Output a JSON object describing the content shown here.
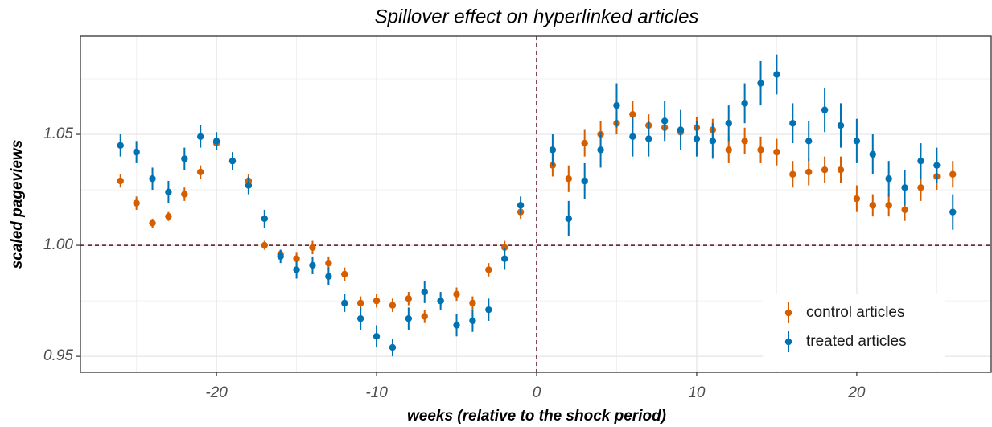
{
  "chart_data": {
    "type": "errorbar-scatter",
    "title": "Spillover effect on hyperlinked articles",
    "x_label": "weeks (relative to the shock period)",
    "y_label": "scaled pageviews",
    "xlim": [
      -28.5,
      28.4
    ],
    "ylim": [
      0.9428,
      1.0942
    ],
    "xticks": [
      -20,
      -10,
      0,
      10,
      20
    ],
    "yticks": [
      0.95,
      {
        "value": 1,
        "label": "1.00"
      },
      1.05
    ],
    "x_minor_grid": [
      -25,
      -15,
      -5,
      5,
      15,
      25
    ],
    "y_minor_grid": [
      0.975,
      1.025,
      1.075
    ],
    "grid": true,
    "vline": 0,
    "hline": 1,
    "reference_color": "#5a1020",
    "legend_position": "bottom-right",
    "x": [
      -26,
      -25,
      -24,
      -23,
      -22,
      -21,
      -20,
      -19,
      -18,
      -17,
      -16,
      -15,
      -14,
      -13,
      -12,
      -11,
      -10,
      -9,
      -8,
      -7,
      -6,
      -5,
      -4,
      -3,
      -2,
      -1,
      1,
      2,
      3,
      4,
      5,
      6,
      7,
      8,
      9,
      10,
      11,
      12,
      13,
      14,
      15,
      16,
      17,
      18,
      19,
      20,
      21,
      22,
      23,
      24,
      25,
      26
    ],
    "series": [
      {
        "name": "control articles",
        "color": "#d55e00",
        "values": [
          1.029,
          1.019,
          1.01,
          1.013,
          1.023,
          1.033,
          1.046,
          1.038,
          1.029,
          1.0,
          0.996,
          0.994,
          0.999,
          0.992,
          0.987,
          0.974,
          0.975,
          0.973,
          0.976,
          0.968,
          0.975,
          0.978,
          0.974,
          0.989,
          0.999,
          1.015,
          1.036,
          1.03,
          1.046,
          1.05,
          1.055,
          1.059,
          1.054,
          1.053,
          1.051,
          1.053,
          1.052,
          1.043,
          1.047,
          1.043,
          1.042,
          1.032,
          1.033,
          1.034,
          1.034,
          1.021,
          1.018,
          1.018,
          1.016,
          1.026,
          1.031,
          1.032
        ],
        "errors": [
          0.003,
          0.003,
          0.002,
          0.002,
          0.003,
          0.003,
          0.003,
          0.003,
          0.003,
          0.002,
          0.002,
          0.003,
          0.003,
          0.003,
          0.003,
          0.003,
          0.003,
          0.003,
          0.003,
          0.003,
          0.003,
          0.003,
          0.003,
          0.003,
          0.003,
          0.003,
          0.005,
          0.006,
          0.006,
          0.006,
          0.005,
          0.006,
          0.005,
          0.005,
          0.005,
          0.005,
          0.005,
          0.006,
          0.006,
          0.006,
          0.006,
          0.006,
          0.006,
          0.006,
          0.006,
          0.006,
          0.005,
          0.005,
          0.005,
          0.006,
          0.006,
          0.006
        ]
      },
      {
        "name": "treated articles",
        "color": "#0072b2",
        "values": [
          1.045,
          1.042,
          1.03,
          1.024,
          1.039,
          1.049,
          1.047,
          1.038,
          1.027,
          1.012,
          0.995,
          0.989,
          0.991,
          0.986,
          0.974,
          0.967,
          0.959,
          0.954,
          0.967,
          0.979,
          0.975,
          0.964,
          0.966,
          0.971,
          0.994,
          1.018,
          1.043,
          1.012,
          1.029,
          1.043,
          1.063,
          1.049,
          1.048,
          1.056,
          1.052,
          1.048,
          1.047,
          1.055,
          1.064,
          1.073,
          1.077,
          1.055,
          1.047,
          1.061,
          1.054,
          1.047,
          1.041,
          1.03,
          1.026,
          1.038,
          1.036,
          1.015
        ],
        "errors": [
          0.005,
          0.005,
          0.005,
          0.005,
          0.005,
          0.005,
          0.004,
          0.004,
          0.004,
          0.004,
          0.003,
          0.004,
          0.004,
          0.004,
          0.004,
          0.005,
          0.005,
          0.004,
          0.005,
          0.005,
          0.004,
          0.005,
          0.005,
          0.005,
          0.005,
          0.004,
          0.007,
          0.008,
          0.008,
          0.008,
          0.01,
          0.009,
          0.008,
          0.009,
          0.009,
          0.008,
          0.008,
          0.008,
          0.009,
          0.01,
          0.009,
          0.009,
          0.009,
          0.01,
          0.01,
          0.01,
          0.009,
          0.008,
          0.008,
          0.008,
          0.008,
          0.008
        ]
      }
    ]
  }
}
